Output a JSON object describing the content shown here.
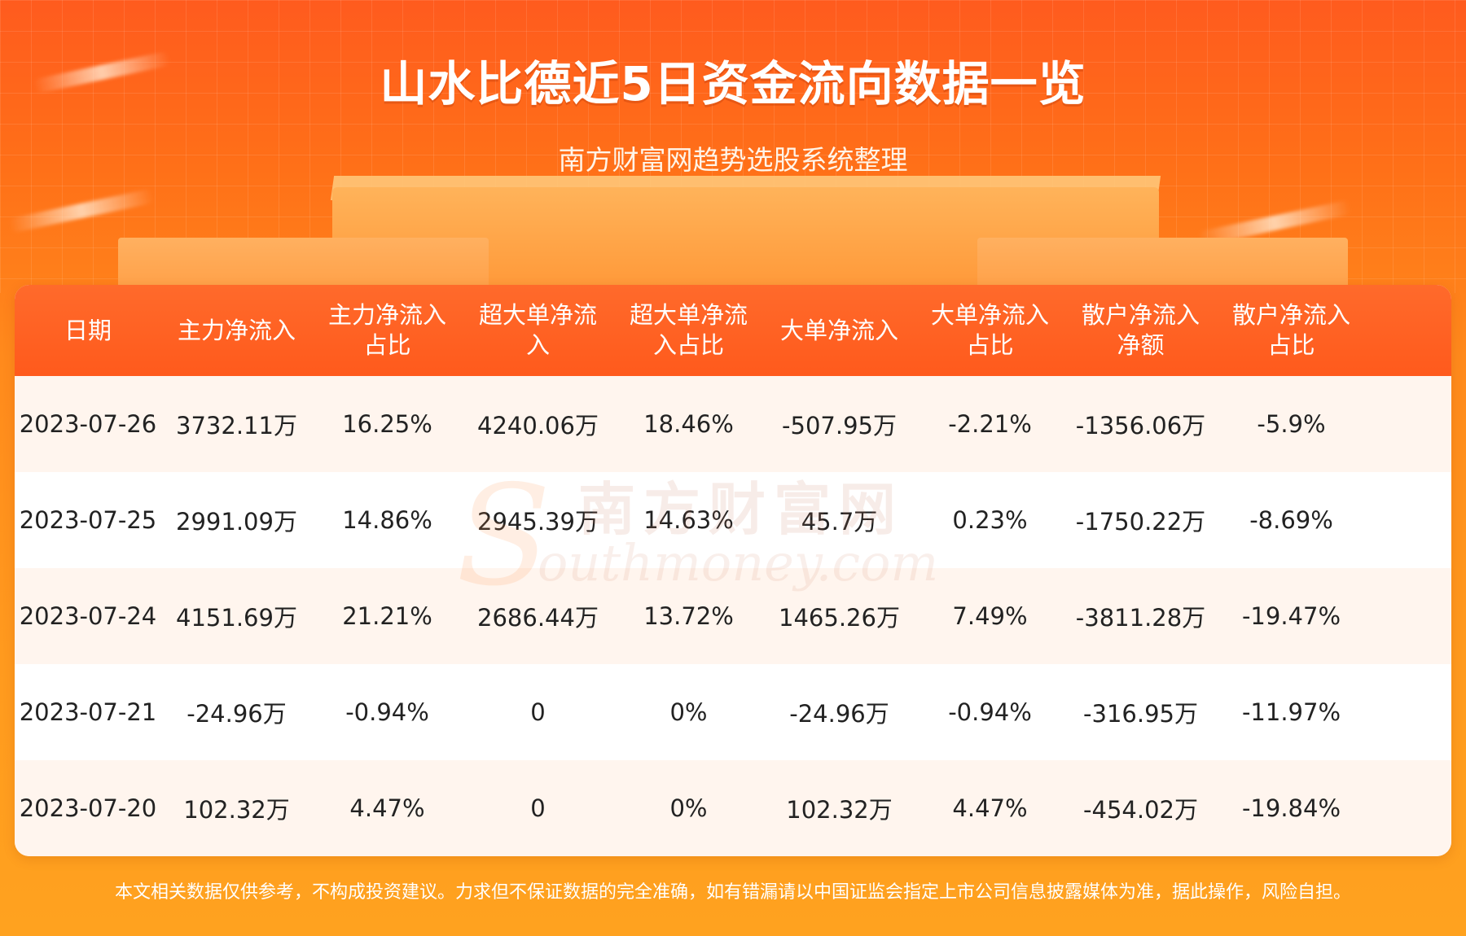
{
  "header": {
    "title": "山水比德近5日资金流向数据一览",
    "subtitle": "南方财富网趋势选股系统整理"
  },
  "table": {
    "columns": [
      {
        "line1": "日期",
        "line2": ""
      },
      {
        "line1": "主力净流入",
        "line2": ""
      },
      {
        "line1": "主力净流入",
        "line2": "占比"
      },
      {
        "line1": "超大单净流",
        "line2": "入"
      },
      {
        "line1": "超大单净流",
        "line2": "入占比"
      },
      {
        "line1": "大单净流入",
        "line2": ""
      },
      {
        "line1": "大单净流入",
        "line2": "占比"
      },
      {
        "line1": "散户净流入",
        "line2": "净额"
      },
      {
        "line1": "散户净流入",
        "line2": "占比"
      }
    ],
    "rows": [
      [
        "2023-07-26",
        "3732.11万",
        "16.25%",
        "4240.06万",
        "18.46%",
        "-507.95万",
        "-2.21%",
        "-1356.06万",
        "-5.9%"
      ],
      [
        "2023-07-25",
        "2991.09万",
        "14.86%",
        "2945.39万",
        "14.63%",
        "45.7万",
        "0.23%",
        "-1750.22万",
        "-8.69%"
      ],
      [
        "2023-07-24",
        "4151.69万",
        "21.21%",
        "2686.44万",
        "13.72%",
        "1465.26万",
        "7.49%",
        "-3811.28万",
        "-19.47%"
      ],
      [
        "2023-07-21",
        "-24.96万",
        "-0.94%",
        "0",
        "0%",
        "-24.96万",
        "-0.94%",
        "-316.95万",
        "-11.97%"
      ],
      [
        "2023-07-20",
        "102.32万",
        "4.47%",
        "0",
        "0%",
        "102.32万",
        "4.47%",
        "-454.02万",
        "-19.84%"
      ]
    ]
  },
  "watermark": {
    "cn": "南方财富网",
    "en": "outhmoney.com",
    "logo_letter": "S"
  },
  "footer": {
    "disclaimer": "本文相关数据仅供参考，不构成投资建议。力求但不保证数据的完全准确，如有错漏请以中国证监会指定上市公司信息披露媒体为准，据此操作，风险自担。"
  },
  "colors": {
    "header_bg": "#ff5a1c",
    "row_alt_bg": "#fff5ee",
    "page_bg": "#ff8a1c"
  }
}
